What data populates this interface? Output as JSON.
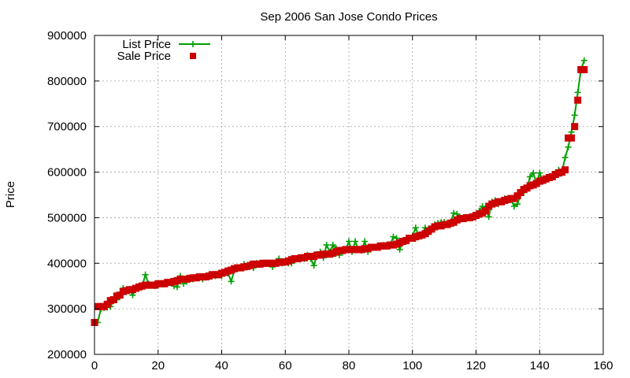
{
  "chart_data": {
    "type": "line",
    "title": "Sep 2006 San Jose Condo Prices",
    "xlabel": "",
    "ylabel": "Price",
    "xlim": [
      0,
      160
    ],
    "ylim": [
      200000,
      900000
    ],
    "xticks": [
      "0",
      "20",
      "40",
      "60",
      "80",
      "100",
      "120",
      "140",
      "160"
    ],
    "yticks": [
      "200000",
      "300000",
      "400000",
      "500000",
      "600000",
      "700000",
      "800000",
      "900000"
    ],
    "grid": true,
    "legend_position": "top-left",
    "series": [
      {
        "name": "List Price",
        "style": "line-with-plus-markers",
        "color": "#00a000",
        "points": [
          [
            1,
            270000
          ],
          [
            2,
            300000
          ],
          [
            3,
            302000
          ],
          [
            4,
            303000
          ],
          [
            5,
            305000
          ],
          [
            6,
            318000
          ],
          [
            7,
            320000
          ],
          [
            8,
            330000
          ],
          [
            9,
            345000
          ],
          [
            10,
            340000
          ],
          [
            11,
            342000
          ],
          [
            12,
            330000
          ],
          [
            13,
            345000
          ],
          [
            14,
            345000
          ],
          [
            15,
            350000
          ],
          [
            16,
            375000
          ],
          [
            17,
            355000
          ],
          [
            18,
            352000
          ],
          [
            19,
            350000
          ],
          [
            20,
            352000
          ],
          [
            21,
            355000
          ],
          [
            22,
            355000
          ],
          [
            23,
            358000
          ],
          [
            24,
            358000
          ],
          [
            25,
            350000
          ],
          [
            26,
            348000
          ],
          [
            27,
            372000
          ],
          [
            28,
            355000
          ],
          [
            29,
            360000
          ],
          [
            30,
            365000
          ],
          [
            31,
            365000
          ],
          [
            32,
            368000
          ],
          [
            33,
            368000
          ],
          [
            34,
            365000
          ],
          [
            35,
            370000
          ],
          [
            36,
            370000
          ],
          [
            37,
            372000
          ],
          [
            38,
            372000
          ],
          [
            39,
            375000
          ],
          [
            40,
            372000
          ],
          [
            41,
            380000
          ],
          [
            42,
            378000
          ],
          [
            43,
            360000
          ],
          [
            44,
            385000
          ],
          [
            45,
            388000
          ],
          [
            46,
            390000
          ],
          [
            47,
            398000
          ],
          [
            48,
            392000
          ],
          [
            49,
            398000
          ],
          [
            50,
            390000
          ],
          [
            51,
            400000
          ],
          [
            52,
            400000
          ],
          [
            53,
            398000
          ],
          [
            54,
            400000
          ],
          [
            55,
            400000
          ],
          [
            56,
            392000
          ],
          [
            57,
            400000
          ],
          [
            58,
            410000
          ],
          [
            59,
            400000
          ],
          [
            60,
            402000
          ],
          [
            61,
            400000
          ],
          [
            62,
            400000
          ],
          [
            63,
            408000
          ],
          [
            64,
            410000
          ],
          [
            65,
            412000
          ],
          [
            66,
            410000
          ],
          [
            67,
            418000
          ],
          [
            68,
            410000
          ],
          [
            69,
            395000
          ],
          [
            70,
            420000
          ],
          [
            71,
            425000
          ],
          [
            72,
            412000
          ],
          [
            73,
            440000
          ],
          [
            74,
            425000
          ],
          [
            75,
            440000
          ],
          [
            76,
            432000
          ],
          [
            77,
            418000
          ],
          [
            78,
            425000
          ],
          [
            79,
            430000
          ],
          [
            80,
            448000
          ],
          [
            81,
            425000
          ],
          [
            82,
            448000
          ],
          [
            83,
            430000
          ],
          [
            84,
            428000
          ],
          [
            85,
            448000
          ],
          [
            86,
            425000
          ],
          [
            87,
            435000
          ],
          [
            88,
            435000
          ],
          [
            89,
            438000
          ],
          [
            90,
            438000
          ],
          [
            91,
            440000
          ],
          [
            92,
            440000
          ],
          [
            93,
            440000
          ],
          [
            94,
            458000
          ],
          [
            95,
            455000
          ],
          [
            96,
            430000
          ],
          [
            97,
            448000
          ],
          [
            98,
            448000
          ],
          [
            99,
            455000
          ],
          [
            100,
            460000
          ],
          [
            101,
            478000
          ],
          [
            102,
            460000
          ],
          [
            103,
            462000
          ],
          [
            104,
            478000
          ],
          [
            105,
            465000
          ],
          [
            106,
            475000
          ],
          [
            107,
            485000
          ],
          [
            108,
            488000
          ],
          [
            109,
            490000
          ],
          [
            110,
            490000
          ],
          [
            111,
            488000
          ],
          [
            112,
            490000
          ],
          [
            113,
            510000
          ],
          [
            114,
            508000
          ],
          [
            115,
            500000
          ],
          [
            116,
            498000
          ],
          [
            117,
            500000
          ],
          [
            118,
            500000
          ],
          [
            119,
            502000
          ],
          [
            120,
            505000
          ],
          [
            121,
            515000
          ],
          [
            122,
            525000
          ],
          [
            123,
            520000
          ],
          [
            124,
            502000
          ],
          [
            125,
            535000
          ],
          [
            126,
            538000
          ],
          [
            127,
            530000
          ],
          [
            128,
            535000
          ],
          [
            129,
            542000
          ],
          [
            130,
            538000
          ],
          [
            131,
            540000
          ],
          [
            132,
            525000
          ],
          [
            133,
            530000
          ],
          [
            134,
            550000
          ],
          [
            135,
            555000
          ],
          [
            136,
            565000
          ],
          [
            137,
            590000
          ],
          [
            138,
            598000
          ],
          [
            139,
            575000
          ],
          [
            140,
            598000
          ],
          [
            141,
            580000
          ],
          [
            142,
            585000
          ],
          [
            143,
            588000
          ],
          [
            144,
            595000
          ],
          [
            145,
            598000
          ],
          [
            146,
            605000
          ],
          [
            147,
            600000
          ],
          [
            148,
            632000
          ],
          [
            149,
            655000
          ],
          [
            150,
            688000
          ],
          [
            151,
            725000
          ],
          [
            152,
            775000
          ],
          [
            153,
            825000
          ],
          [
            154,
            845000
          ]
        ]
      },
      {
        "name": "Sale Price",
        "style": "square-markers",
        "color": "#cc0000",
        "points": [
          [
            0,
            270000
          ],
          [
            1,
            305000
          ],
          [
            2,
            305000
          ],
          [
            3,
            305000
          ],
          [
            4,
            310000
          ],
          [
            5,
            318000
          ],
          [
            6,
            320000
          ],
          [
            7,
            328000
          ],
          [
            8,
            330000
          ],
          [
            9,
            338000
          ],
          [
            10,
            340000
          ],
          [
            11,
            342000
          ],
          [
            12,
            342000
          ],
          [
            13,
            345000
          ],
          [
            14,
            348000
          ],
          [
            15,
            350000
          ],
          [
            16,
            352000
          ],
          [
            17,
            352000
          ],
          [
            18,
            352000
          ],
          [
            19,
            352000
          ],
          [
            20,
            355000
          ],
          [
            21,
            355000
          ],
          [
            22,
            355000
          ],
          [
            23,
            358000
          ],
          [
            24,
            358000
          ],
          [
            25,
            360000
          ],
          [
            26,
            362000
          ],
          [
            27,
            365000
          ],
          [
            28,
            365000
          ],
          [
            29,
            365000
          ],
          [
            30,
            367000
          ],
          [
            31,
            368000
          ],
          [
            32,
            368000
          ],
          [
            33,
            370000
          ],
          [
            34,
            370000
          ],
          [
            35,
            370000
          ],
          [
            36,
            372000
          ],
          [
            37,
            375000
          ],
          [
            38,
            375000
          ],
          [
            39,
            375000
          ],
          [
            40,
            378000
          ],
          [
            41,
            380000
          ],
          [
            42,
            383000
          ],
          [
            43,
            385000
          ],
          [
            44,
            388000
          ],
          [
            45,
            390000
          ],
          [
            46,
            390000
          ],
          [
            47,
            392000
          ],
          [
            48,
            393000
          ],
          [
            49,
            395000
          ],
          [
            50,
            398000
          ],
          [
            51,
            398000
          ],
          [
            52,
            398000
          ],
          [
            53,
            400000
          ],
          [
            54,
            400000
          ],
          [
            55,
            400000
          ],
          [
            56,
            400000
          ],
          [
            57,
            400000
          ],
          [
            58,
            402000
          ],
          [
            59,
            402000
          ],
          [
            60,
            403000
          ],
          [
            61,
            405000
          ],
          [
            62,
            408000
          ],
          [
            63,
            410000
          ],
          [
            64,
            410000
          ],
          [
            65,
            412000
          ],
          [
            66,
            412000
          ],
          [
            67,
            415000
          ],
          [
            68,
            415000
          ],
          [
            69,
            415000
          ],
          [
            70,
            418000
          ],
          [
            71,
            418000
          ],
          [
            72,
            420000
          ],
          [
            73,
            420000
          ],
          [
            74,
            420000
          ],
          [
            75,
            422000
          ],
          [
            76,
            425000
          ],
          [
            77,
            428000
          ],
          [
            78,
            428000
          ],
          [
            79,
            430000
          ],
          [
            80,
            430000
          ],
          [
            81,
            430000
          ],
          [
            82,
            430000
          ],
          [
            83,
            430000
          ],
          [
            84,
            430000
          ],
          [
            85,
            432000
          ],
          [
            86,
            432000
          ],
          [
            87,
            435000
          ],
          [
            88,
            435000
          ],
          [
            89,
            435000
          ],
          [
            90,
            438000
          ],
          [
            91,
            438000
          ],
          [
            92,
            438000
          ],
          [
            93,
            440000
          ],
          [
            94,
            440000
          ],
          [
            95,
            442000
          ],
          [
            96,
            445000
          ],
          [
            97,
            448000
          ],
          [
            98,
            450000
          ],
          [
            99,
            455000
          ],
          [
            100,
            455000
          ],
          [
            101,
            458000
          ],
          [
            102,
            460000
          ],
          [
            103,
            462000
          ],
          [
            104,
            465000
          ],
          [
            105,
            470000
          ],
          [
            106,
            475000
          ],
          [
            107,
            480000
          ],
          [
            108,
            482000
          ],
          [
            109,
            482000
          ],
          [
            110,
            485000
          ],
          [
            111,
            485000
          ],
          [
            112,
            488000
          ],
          [
            113,
            490000
          ],
          [
            114,
            495000
          ],
          [
            115,
            498000
          ],
          [
            116,
            498000
          ],
          [
            117,
            500000
          ],
          [
            118,
            500000
          ],
          [
            119,
            502000
          ],
          [
            120,
            505000
          ],
          [
            121,
            508000
          ],
          [
            122,
            510000
          ],
          [
            123,
            515000
          ],
          [
            124,
            525000
          ],
          [
            125,
            530000
          ],
          [
            126,
            532000
          ],
          [
            127,
            535000
          ],
          [
            128,
            535000
          ],
          [
            129,
            538000
          ],
          [
            130,
            540000
          ],
          [
            131,
            542000
          ],
          [
            132,
            542000
          ],
          [
            133,
            548000
          ],
          [
            134,
            555000
          ],
          [
            135,
            562000
          ],
          [
            136,
            565000
          ],
          [
            137,
            570000
          ],
          [
            138,
            572000
          ],
          [
            139,
            575000
          ],
          [
            140,
            580000
          ],
          [
            141,
            582000
          ],
          [
            142,
            585000
          ],
          [
            143,
            588000
          ],
          [
            144,
            590000
          ],
          [
            145,
            595000
          ],
          [
            146,
            598000
          ],
          [
            147,
            600000
          ],
          [
            148,
            605000
          ],
          [
            149,
            675000
          ],
          [
            150,
            675000
          ],
          [
            151,
            700000
          ],
          [
            152,
            758000
          ],
          [
            153,
            825000
          ],
          [
            154,
            825000
          ]
        ]
      }
    ]
  }
}
